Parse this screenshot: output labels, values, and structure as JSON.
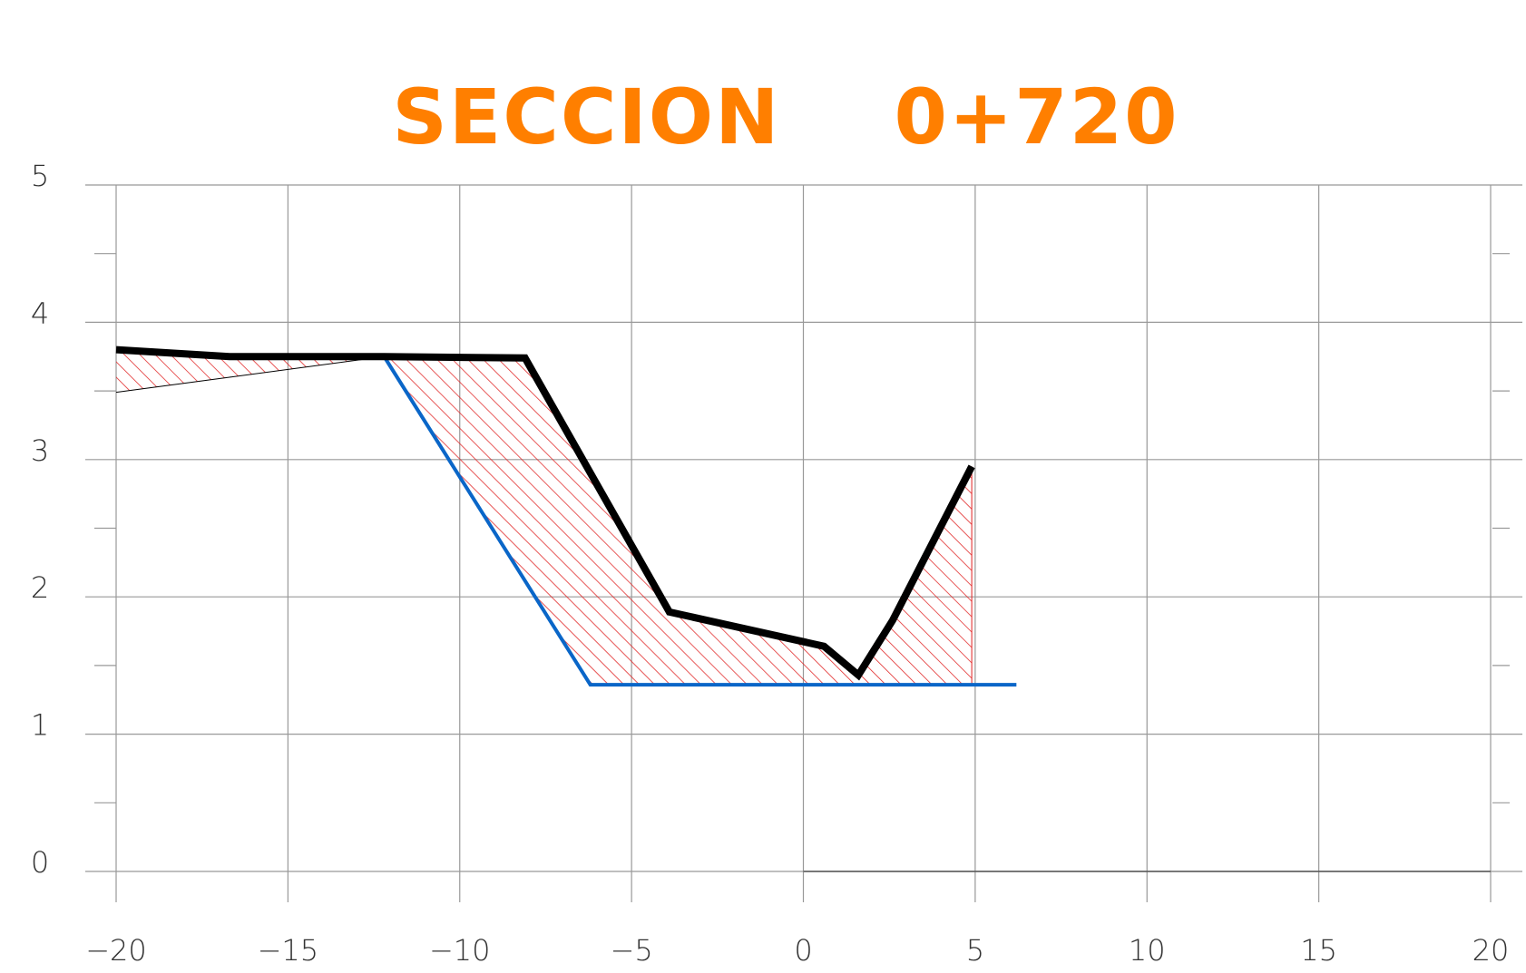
{
  "chart_data": {
    "type": "line",
    "title": "SECCION    0+720",
    "xlim": [
      -20,
      20
    ],
    "ylim": [
      0,
      5
    ],
    "xticks": [
      {
        "value": -20,
        "label": "−20"
      },
      {
        "value": -15,
        "label": "−15"
      },
      {
        "value": -10,
        "label": "−10"
      },
      {
        "value": -5,
        "label": "−5"
      },
      0,
      5,
      10,
      15,
      20
    ],
    "yticks": [
      0,
      1,
      2,
      3,
      4,
      5
    ],
    "grid": true,
    "hatch_color": "#e02020",
    "series": [
      {
        "color": "#000000",
        "width": 8,
        "x": [
          -20,
          -16.7,
          -12.2,
          -8.1,
          -3.9,
          0.6,
          1.6,
          2.6,
          4.9
        ],
        "values": [
          3.8,
          3.75,
          3.75,
          3.74,
          1.89,
          1.64,
          1.43,
          1.83,
          2.95
        ]
      },
      {
        "color": "#0a66c8",
        "width": 4,
        "x": [
          -12.2,
          -6.2,
          6.2
        ],
        "values": [
          3.75,
          1.36,
          1.36
        ]
      },
      {
        "color": "#000000",
        "width": 1,
        "x": [
          -20,
          -16.7,
          -12.2
        ],
        "values": [
          3.49,
          3.6,
          3.75
        ]
      }
    ]
  }
}
